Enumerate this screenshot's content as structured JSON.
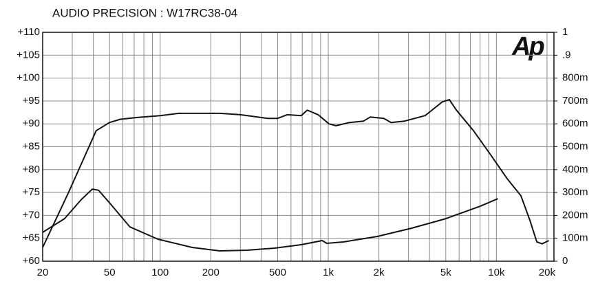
{
  "chart_data": {
    "type": "line",
    "title": "AUDIO PRECISION  : W17RC38-04",
    "logo": "Ap",
    "xscale": "log",
    "xlim": [
      20,
      22000
    ],
    "xticks": [
      20,
      50,
      100,
      200,
      500,
      {
        "value": 1000,
        "label": "1k"
      },
      {
        "value": 2000,
        "label": "2k"
      },
      {
        "value": 5000,
        "label": "5k"
      },
      {
        "value": 10000,
        "label": "10k"
      },
      {
        "value": 20000,
        "label": "20k"
      }
    ],
    "xminor": [
      30,
      40,
      60,
      70,
      80,
      90,
      300,
      400,
      600,
      700,
      800,
      900,
      3000,
      4000,
      6000,
      7000,
      8000,
      9000
    ],
    "ylim": [
      60,
      110
    ],
    "yticks": [
      {
        "value": 60,
        "label": "+60"
      },
      {
        "value": 65,
        "label": "+65"
      },
      {
        "value": 70,
        "label": "+70"
      },
      {
        "value": 75,
        "label": "+75"
      },
      {
        "value": 80,
        "label": "+80"
      },
      {
        "value": 85,
        "label": "+85"
      },
      {
        "value": 90,
        "label": "+90"
      },
      {
        "value": 95,
        "label": "+95"
      },
      {
        "value": 100,
        "label": "+100"
      },
      {
        "value": 105,
        "label": "+105"
      },
      {
        "value": 110,
        "label": "+110"
      }
    ],
    "y2lim": [
      0,
      1
    ],
    "y2ticks": [
      0,
      {
        "value": 0.1,
        "label": "100m"
      },
      {
        "value": 0.2,
        "label": "200m"
      },
      {
        "value": 0.3,
        "label": "300m"
      },
      {
        "value": 0.4,
        "label": "400m"
      },
      {
        "value": 0.5,
        "label": "500m"
      },
      {
        "value": 0.6,
        "label": "600m"
      },
      {
        "value": 0.7,
        "label": "700m"
      },
      {
        "value": 0.8,
        "label": "800m"
      },
      {
        "value": 0.9,
        "label": ".9"
      },
      1
    ],
    "grid": true,
    "series": [
      {
        "color": "#111111",
        "x": [
          20,
          28.5,
          41.6,
          50,
          58,
          73,
          100,
          129,
          226,
          300,
          436,
          500,
          570,
          690,
          750,
          870,
          1010,
          1110,
          1340,
          1620,
          1780,
          2140,
          2360,
          2840,
          3770,
          4770,
          5250,
          5780,
          7310,
          9220,
          11600,
          14000,
          15800,
          17400,
          18700,
          20500
        ],
        "values": [
          63,
          75,
          88.5,
          90.3,
          91,
          91.4,
          91.8,
          92.3,
          92.3,
          92,
          91.2,
          91.2,
          92,
          91.8,
          93,
          92,
          90,
          89.6,
          90.3,
          90.6,
          91.5,
          91.2,
          90.3,
          90.6,
          91.8,
          94.8,
          95.3,
          93,
          88.5,
          83.3,
          78,
          74.3,
          69,
          64.2,
          63.8,
          64.5
        ]
      },
      {
        "color": "#111111",
        "axis": "y2",
        "x": [
          20,
          27,
          34,
          39.5,
          43,
          50,
          66,
          97,
          155,
          226,
          330,
          480,
          690,
          920,
          980,
          1230,
          1960,
          3130,
          5000,
          8000,
          10200
        ],
        "values": [
          0.126,
          0.186,
          0.27,
          0.315,
          0.31,
          0.255,
          0.15,
          0.096,
          0.06,
          0.045,
          0.048,
          0.057,
          0.072,
          0.09,
          0.078,
          0.084,
          0.108,
          0.144,
          0.186,
          0.24,
          0.273
        ]
      }
    ]
  }
}
